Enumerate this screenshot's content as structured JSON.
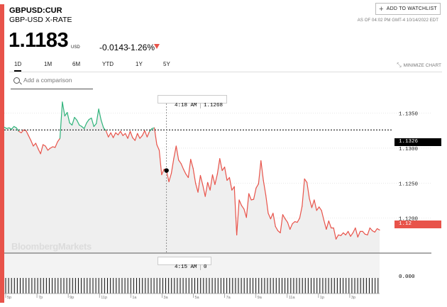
{
  "header": {
    "ticker": "GBPUSD:CUR",
    "name": "GBP-USD X-RATE",
    "watchlist_label": "ADD TO WATCHLIST",
    "as_of": "AS OF 04:02 PM GMT-4 10/14/2022 EDT"
  },
  "quote": {
    "price": "1.1183",
    "currency": "USD",
    "change": "-0.0143",
    "change_pct": "-1.26%",
    "direction": "down",
    "down_color": "#e8534a",
    "up_color": "#2db37a"
  },
  "range_tabs": [
    "1D",
    "1M",
    "6M",
    "YTD",
    "1Y",
    "5Y"
  ],
  "active_tab": "1D",
  "minimize_label": "MINIMIZE CHART",
  "compare": {
    "placeholder": "Add a comparison"
  },
  "crosshair": {
    "price_time": "4:18 AM",
    "price_value": "1.1268",
    "volume_time": "4:15 AM",
    "volume_value": "0"
  },
  "watermark": "BloombergMarkets",
  "chart_data": {
    "type": "line",
    "title": "",
    "ylim": [
      1.115,
      1.138
    ],
    "y_ticks": [
      "1.1350",
      "1.1300",
      "1.1250",
      "1.1200"
    ],
    "x_ticks": [
      "5p",
      "7p",
      "9p",
      "11p",
      "1a",
      "3a",
      "5a",
      "7a",
      "9a",
      "11a",
      "1p",
      "3p"
    ],
    "previous_close": "1.1326",
    "last_label": "1.12",
    "volume_axis_label": "0.000",
    "series": [
      {
        "values": [
          1.133,
          1.1328,
          1.1329,
          1.1327,
          1.1331,
          1.1329,
          1.1324,
          1.1322,
          1.1326,
          1.1325,
          1.1318,
          1.1311,
          1.1303,
          1.1307,
          1.1299,
          1.1292,
          1.1305,
          1.1303,
          1.1297,
          1.13,
          1.1302,
          1.1301,
          1.1309,
          1.1314,
          1.1366,
          1.1346,
          1.1351,
          1.1336,
          1.1333,
          1.1344,
          1.134,
          1.1333,
          1.1331,
          1.1328,
          1.1336,
          1.1341,
          1.1343,
          1.1331,
          1.1335,
          1.1356,
          1.134,
          1.1329,
          1.1325,
          1.1316,
          1.1322,
          1.1315,
          1.1322,
          1.1319,
          1.1324,
          1.1318,
          1.1321,
          1.1314,
          1.1324,
          1.1315,
          1.1311,
          1.1321,
          1.1314,
          1.1318,
          1.1325,
          1.1316,
          1.1324,
          1.1328,
          1.1329,
          1.1305,
          1.1297,
          1.1262,
          1.127,
          1.1268,
          1.1252,
          1.1264,
          1.1285,
          1.1303,
          1.1283,
          1.1278,
          1.127,
          1.1263,
          1.1258,
          1.1284,
          1.1271,
          1.125,
          1.1237,
          1.1261,
          1.1247,
          1.1231,
          1.1251,
          1.124,
          1.1262,
          1.1248,
          1.1263,
          1.1285,
          1.1268,
          1.1273,
          1.1254,
          1.1258,
          1.124,
          1.1245,
          1.1176,
          1.1226,
          1.1218,
          1.1213,
          1.1201,
          1.1235,
          1.1226,
          1.1227,
          1.1243,
          1.1249,
          1.1282,
          1.1254,
          1.1233,
          1.1207,
          1.1199,
          1.1207,
          1.1188,
          1.1182,
          1.1179,
          1.1205,
          1.1199,
          1.1194,
          1.1184,
          1.1192,
          1.1195,
          1.1194,
          1.12,
          1.1217,
          1.1256,
          1.1251,
          1.1228,
          1.1215,
          1.1226,
          1.1211,
          1.1216,
          1.1211,
          1.1197,
          1.1184,
          1.1196,
          1.1186,
          1.1186,
          1.117,
          1.1176,
          1.1175,
          1.1179,
          1.1176,
          1.1181,
          1.1174,
          1.1179,
          1.1186,
          1.1173,
          1.1181,
          1.1181,
          1.1177,
          1.1176,
          1.1186,
          1.1182,
          1.118,
          1.1185,
          1.1183
        ]
      }
    ]
  }
}
